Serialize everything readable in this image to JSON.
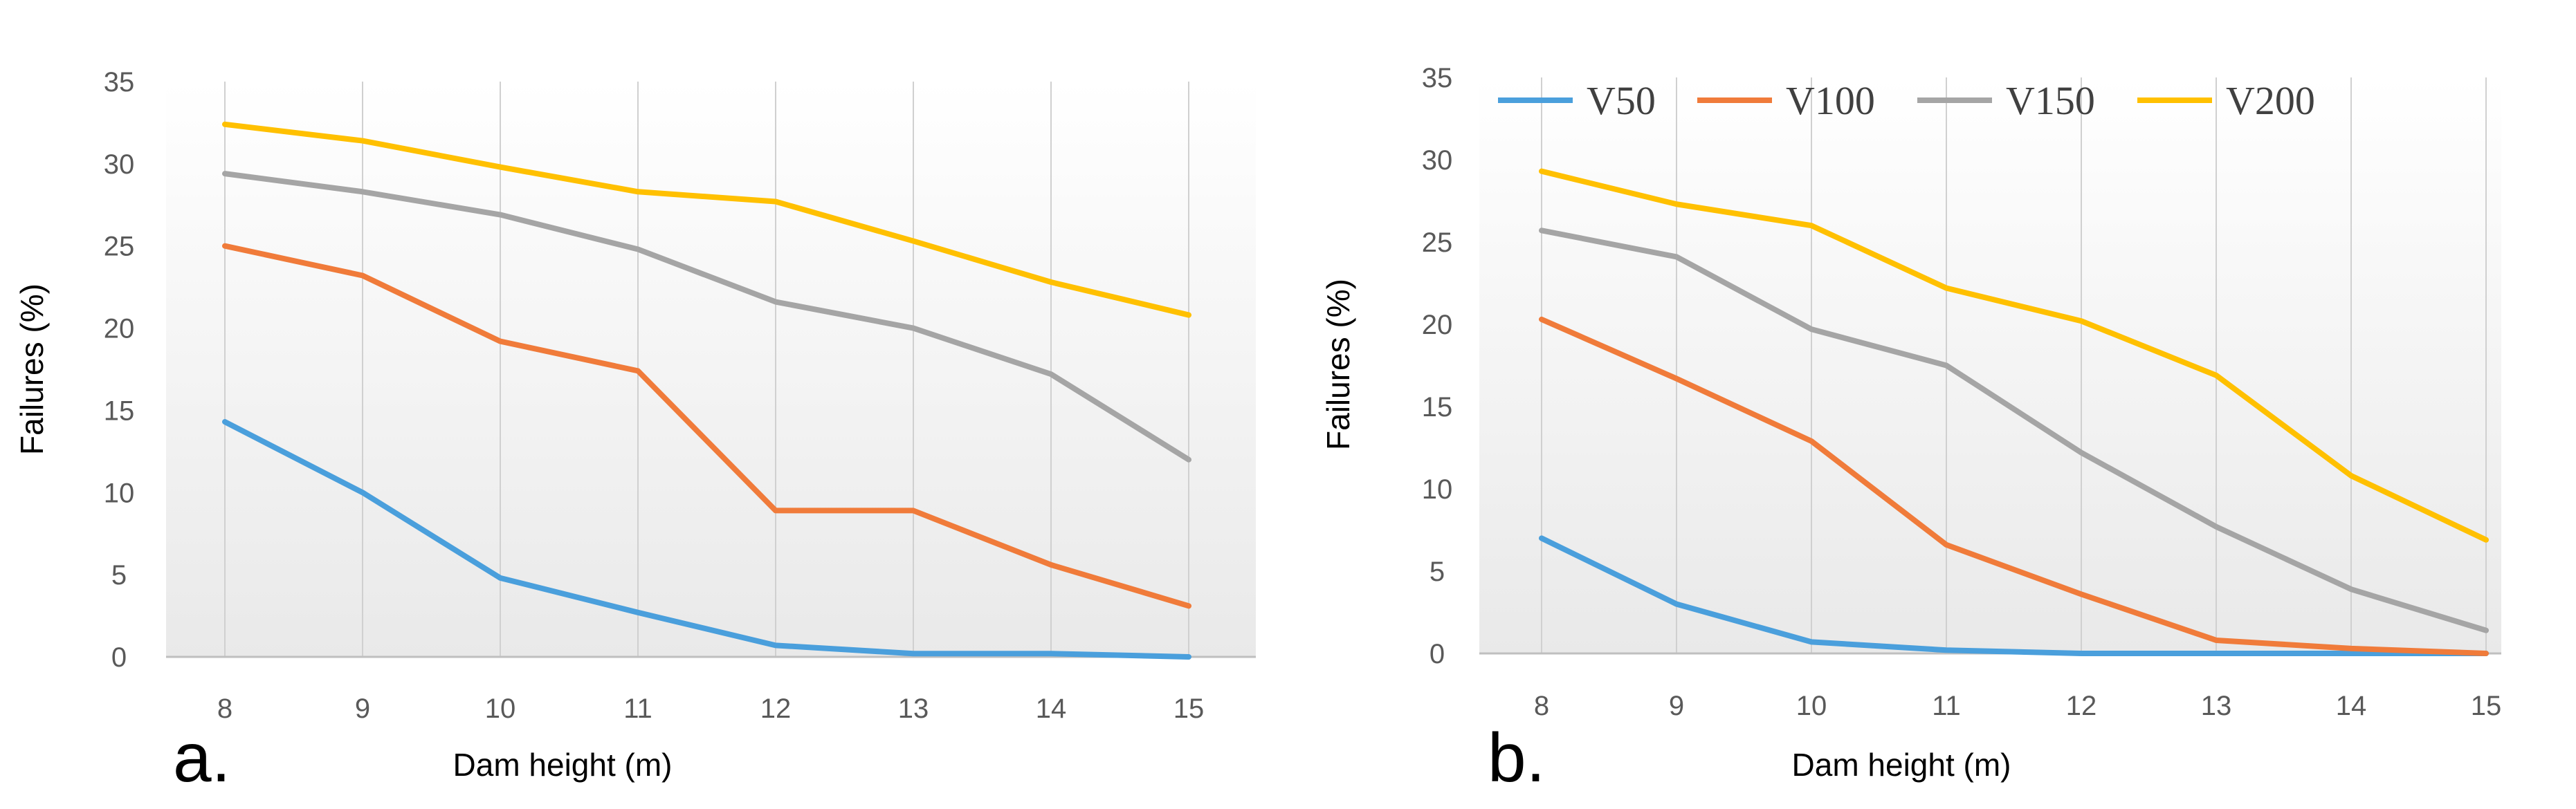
{
  "chart_data": [
    {
      "type": "line",
      "panel_label": "a.",
      "xlabel": "Dam height (m)",
      "ylabel": "Failures (%)",
      "x": [
        8,
        9,
        10,
        11,
        12,
        13,
        14,
        15
      ],
      "ylim": [
        0,
        35
      ],
      "yticks": [
        0,
        5,
        10,
        15,
        20,
        25,
        30,
        35
      ],
      "grid": "vertical",
      "legend": "none",
      "series": [
        {
          "name": "V50",
          "color": "#4a9fdc",
          "values": [
            14.3,
            10.0,
            4.8,
            2.7,
            0.7,
            0.2,
            0.2,
            0.0
          ]
        },
        {
          "name": "V100",
          "color": "#f07b3a",
          "values": [
            25.0,
            23.2,
            19.2,
            17.4,
            8.9,
            8.9,
            5.6,
            3.1
          ]
        },
        {
          "name": "V150",
          "color": "#a5a5a5",
          "values": [
            29.4,
            28.3,
            26.9,
            24.8,
            21.6,
            20.0,
            17.2,
            12.0
          ]
        },
        {
          "name": "V200",
          "color": "#ffc000",
          "values": [
            32.4,
            31.4,
            29.8,
            28.3,
            27.7,
            25.3,
            22.8,
            20.8
          ]
        }
      ]
    },
    {
      "type": "line",
      "panel_label": "b.",
      "xlabel": "Dam height (m)",
      "ylabel": "Failures (%)",
      "x": [
        8,
        9,
        10,
        11,
        12,
        13,
        14,
        15
      ],
      "ylim": [
        0,
        35
      ],
      "yticks": [
        0,
        5,
        10,
        15,
        20,
        25,
        30,
        35
      ],
      "grid": "vertical",
      "legend": "top-left",
      "series": [
        {
          "name": "V50",
          "color": "#4a9fdc",
          "values": [
            7.0,
            3.0,
            0.7,
            0.2,
            0.0,
            0.0,
            0.0,
            0.0
          ]
        },
        {
          "name": "V100",
          "color": "#f07b3a",
          "values": [
            20.3,
            16.7,
            12.9,
            6.6,
            3.6,
            0.8,
            0.3,
            0.0
          ]
        },
        {
          "name": "V150",
          "color": "#a5a5a5",
          "values": [
            25.7,
            24.1,
            19.7,
            17.5,
            12.2,
            7.7,
            3.9,
            1.4
          ]
        },
        {
          "name": "V200",
          "color": "#ffc000",
          "values": [
            29.3,
            27.3,
            26.0,
            22.2,
            20.2,
            16.9,
            10.8,
            6.9
          ]
        }
      ]
    }
  ]
}
